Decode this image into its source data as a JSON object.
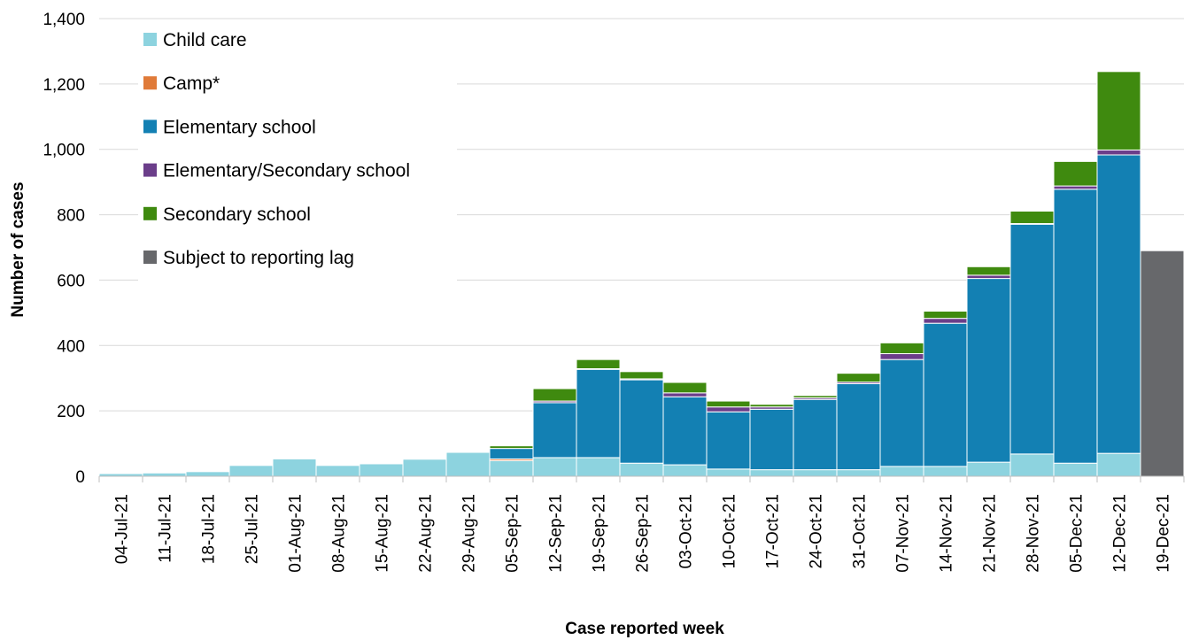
{
  "chart_data": {
    "type": "bar",
    "stacked": true,
    "xlabel": "Case reported week",
    "ylabel": "Number of cases",
    "ylim": [
      0,
      1400
    ],
    "yticks": [
      0,
      200,
      400,
      600,
      800,
      1000,
      1200,
      1400
    ],
    "ytick_labels": [
      "0",
      "200",
      "400",
      "600",
      "800",
      "1,000",
      "1,200",
      "1,400"
    ],
    "grid": "horizontal",
    "legend_position": "top-left",
    "categories": [
      "04-Jul-21",
      "11-Jul-21",
      "18-Jul-21",
      "25-Jul-21",
      "01-Aug-21",
      "08-Aug-21",
      "15-Aug-21",
      "22-Aug-21",
      "29-Aug-21",
      "05-Sep-21",
      "12-Sep-21",
      "19-Sep-21",
      "26-Sep-21",
      "03-Oct-21",
      "10-Oct-21",
      "17-Oct-21",
      "24-Oct-21",
      "31-Oct-21",
      "07-Nov-21",
      "14-Nov-21",
      "21-Nov-21",
      "28-Nov-21",
      "05-Dec-21",
      "12-Dec-21",
      "19-Dec-21"
    ],
    "series": [
      {
        "name": "Child care",
        "color": "#8dd3df",
        "values": [
          8,
          10,
          14,
          33,
          53,
          33,
          38,
          52,
          73,
          48,
          57,
          57,
          40,
          35,
          22,
          20,
          20,
          20,
          30,
          30,
          43,
          68,
          40,
          70,
          0
        ]
      },
      {
        "name": "Camp*",
        "color": "#e07b39",
        "values": [
          0,
          0,
          0,
          0,
          0,
          0,
          0,
          0,
          0,
          5,
          0,
          0,
          0,
          0,
          0,
          0,
          0,
          0,
          0,
          0,
          0,
          0,
          0,
          0,
          0
        ]
      },
      {
        "name": "Elementary school",
        "color": "#1380b3",
        "values": [
          0,
          0,
          0,
          0,
          0,
          0,
          0,
          0,
          0,
          32,
          168,
          270,
          255,
          208,
          175,
          185,
          215,
          263,
          327,
          438,
          562,
          703,
          838,
          913,
          0
        ]
      },
      {
        "name": "Elementary/Secondary school",
        "color": "#6b3e8a",
        "values": [
          0,
          0,
          0,
          0,
          0,
          0,
          0,
          0,
          0,
          0,
          5,
          2,
          3,
          12,
          15,
          7,
          5,
          5,
          18,
          15,
          10,
          2,
          10,
          15,
          0
        ]
      },
      {
        "name": "Secondary school",
        "color": "#3f8a0f",
        "values": [
          0,
          0,
          0,
          0,
          0,
          0,
          0,
          0,
          0,
          8,
          38,
          28,
          22,
          32,
          18,
          8,
          7,
          27,
          33,
          22,
          26,
          38,
          75,
          240,
          0
        ]
      },
      {
        "name": "Subject to reporting lag",
        "color": "#67686b",
        "values": [
          0,
          0,
          0,
          0,
          0,
          0,
          0,
          0,
          0,
          0,
          0,
          0,
          0,
          0,
          0,
          0,
          0,
          0,
          0,
          0,
          0,
          0,
          0,
          0,
          690
        ]
      }
    ]
  }
}
